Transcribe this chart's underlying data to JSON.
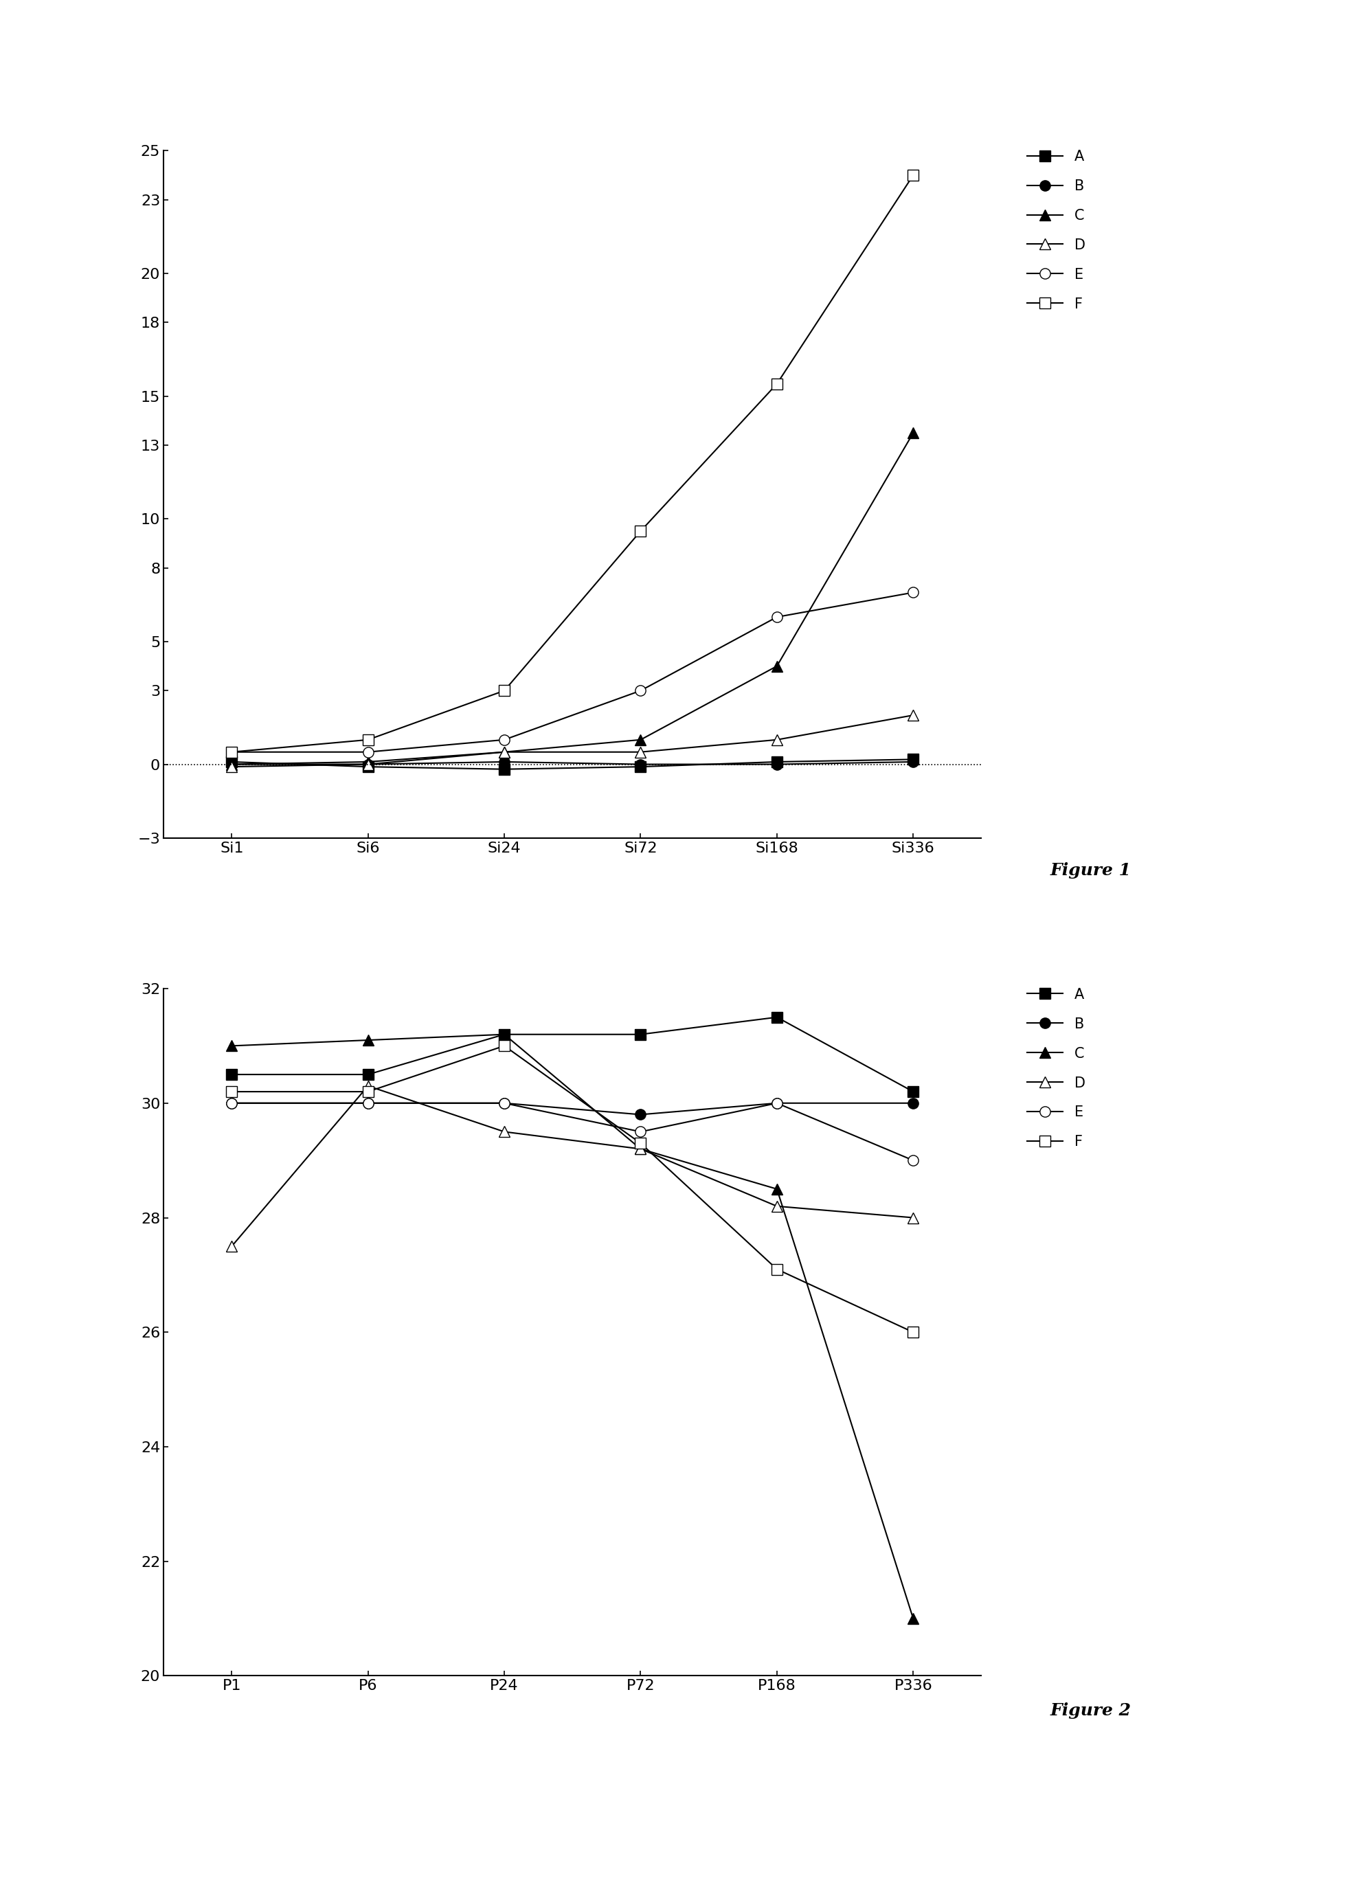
{
  "fig1": {
    "x_labels": [
      "Si1",
      "Si6",
      "Si24",
      "Si72",
      "Si168",
      "Si336"
    ],
    "x_values": [
      0,
      1,
      2,
      3,
      4,
      5
    ],
    "ylim": [
      -3,
      25
    ],
    "yticks": [
      25,
      23,
      20,
      18,
      15,
      13,
      10,
      8,
      5,
      3,
      0,
      -3
    ],
    "series": {
      "A": {
        "values": [
          0.1,
          -0.1,
          -0.2,
          -0.1,
          0.1,
          0.2
        ],
        "marker": "s",
        "filled": true
      },
      "B": {
        "values": [
          0.0,
          0.0,
          0.1,
          0.0,
          0.0,
          0.1
        ],
        "marker": "o",
        "filled": true
      },
      "C": {
        "values": [
          0.0,
          0.1,
          0.5,
          1.0,
          4.0,
          13.5
        ],
        "marker": "^",
        "filled": true
      },
      "D": {
        "values": [
          -0.1,
          0.0,
          0.5,
          0.5,
          1.0,
          2.0
        ],
        "marker": "^",
        "filled": false
      },
      "E": {
        "values": [
          0.5,
          0.5,
          1.0,
          3.0,
          6.0,
          7.0
        ],
        "marker": "o",
        "filled": false
      },
      "F": {
        "values": [
          0.5,
          1.0,
          3.0,
          9.5,
          15.5,
          24.0
        ],
        "marker": "s",
        "filled": false
      }
    }
  },
  "fig2": {
    "x_labels": [
      "P1",
      "P6",
      "P24",
      "P72",
      "P168",
      "P336"
    ],
    "x_values": [
      0,
      1,
      2,
      3,
      4,
      5
    ],
    "ylim": [
      20,
      32
    ],
    "yticks": [
      20,
      22,
      24,
      26,
      28,
      30,
      32
    ],
    "series": {
      "A": {
        "values": [
          30.5,
          30.5,
          31.2,
          31.2,
          31.5,
          30.2
        ],
        "marker": "s",
        "filled": true
      },
      "B": {
        "values": [
          30.0,
          30.0,
          30.0,
          29.8,
          30.0,
          30.0
        ],
        "marker": "o",
        "filled": true
      },
      "C": {
        "values": [
          31.0,
          31.1,
          31.2,
          29.2,
          28.5,
          21.0
        ],
        "marker": "^",
        "filled": true
      },
      "D": {
        "values": [
          27.5,
          30.3,
          29.5,
          29.2,
          28.2,
          28.0
        ],
        "marker": "^",
        "filled": false
      },
      "E": {
        "values": [
          30.0,
          30.0,
          30.0,
          29.5,
          30.0,
          29.0
        ],
        "marker": "o",
        "filled": false
      },
      "F": {
        "values": [
          30.2,
          30.2,
          31.0,
          29.3,
          27.1,
          26.0
        ],
        "marker": "s",
        "filled": false
      }
    }
  },
  "figure1_label": "Figure 1",
  "figure2_label": "Figure 2",
  "background_color": "#ffffff",
  "linewidth": 1.5,
  "markersize": 11,
  "tick_fontsize": 16,
  "label_fontsize": 16,
  "legend_fontsize": 15
}
